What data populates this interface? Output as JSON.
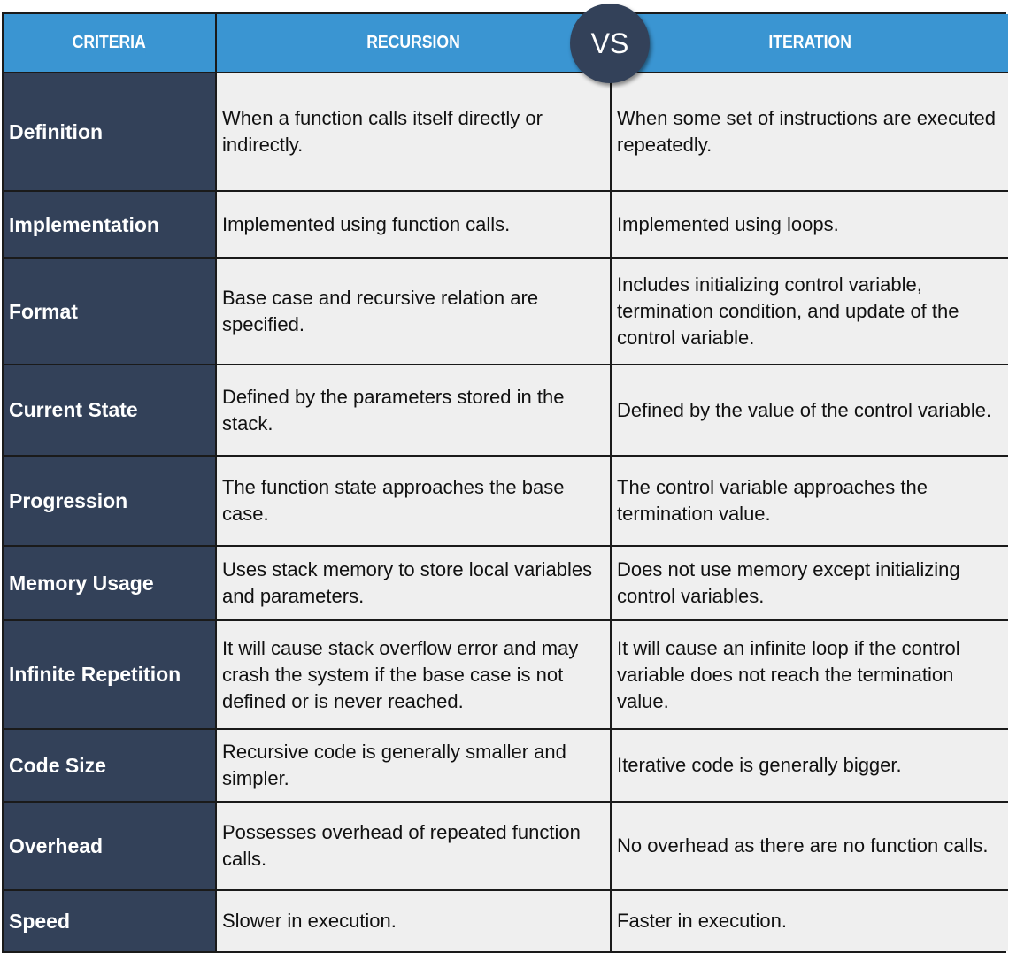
{
  "header": {
    "criteria": "CRITERIA",
    "recursion": "RECURSION",
    "vs": "VS",
    "iteration": "ITERATION"
  },
  "rows": [
    {
      "criteria": "Definition",
      "recursion": "When a function calls itself directly or indirectly.",
      "iteration": "When some set of instructions are executed repeatedly."
    },
    {
      "criteria": "Implementation",
      "recursion": "Implemented using function calls.",
      "iteration": "Implemented using loops."
    },
    {
      "criteria": "Format",
      "recursion": "Base case and recursive relation are specified.",
      "iteration": "Includes initializing control variable, termination condition, and update of the control variable."
    },
    {
      "criteria": "Current State",
      "recursion": "Defined by the parameters stored in the stack.",
      "iteration": "Defined by the value of the control variable."
    },
    {
      "criteria": "Progression",
      "recursion": "The function state approaches the base case.",
      "iteration": "The control variable approaches the termination value."
    },
    {
      "criteria": "Memory Usage",
      "recursion": "Uses stack memory to store local variables and parameters.",
      "iteration": "Does not use memory except initializing control variables."
    },
    {
      "criteria": "Infinite Repetition",
      "recursion": "It will cause stack overflow error and may crash the system if the base case is not defined or is never reached.",
      "iteration": "It will cause an infinite loop if the control variable does not reach the termination value."
    },
    {
      "criteria": "Code Size",
      "recursion": "Recursive code is generally smaller and simpler.",
      "iteration": "Iterative code is generally bigger."
    },
    {
      "criteria": "Overhead",
      "recursion": "Possesses overhead of repeated function calls.",
      "iteration": "No overhead as there are no function calls."
    },
    {
      "criteria": "Speed",
      "recursion": "Slower in execution.",
      "iteration": "Faster in execution."
    }
  ],
  "colors": {
    "header": "#3a95d2",
    "criteria_bg": "#334159",
    "cell_bg": "#efefef"
  }
}
